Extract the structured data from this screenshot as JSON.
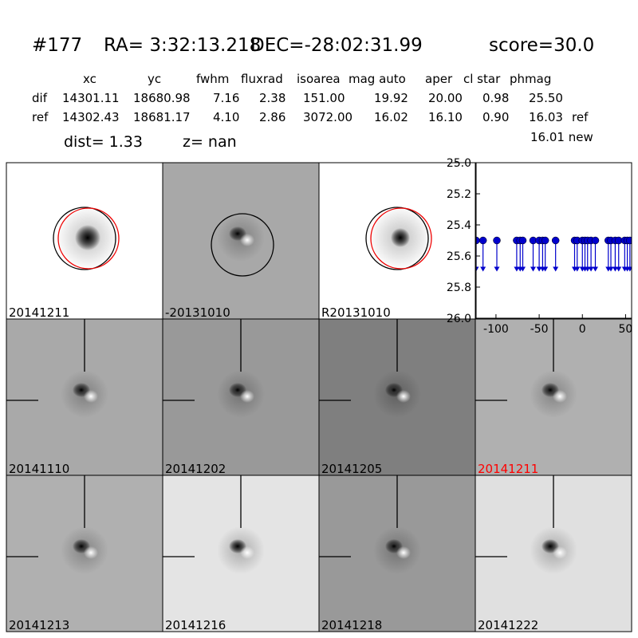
{
  "header": {
    "id": "#177",
    "ra": "RA= 3:32:13.218",
    "dec": "DEC=-28:02:31.99",
    "score": "score=30.0"
  },
  "table": {
    "columns": [
      "xc",
      "yc",
      "fwhm",
      "fluxrad",
      "isoarea",
      "mag auto",
      "aper",
      "cl star",
      "phmag"
    ],
    "rows": [
      {
        "label": "dif",
        "cells": [
          "14301.11",
          "18680.98",
          "7.16",
          "2.38",
          "151.00",
          "19.92",
          "20.00",
          "0.98",
          "25.50"
        ]
      },
      {
        "label": "ref",
        "cells": [
          "14302.43",
          "18681.17",
          "4.10",
          "2.86",
          "3072.00",
          "16.02",
          "16.10",
          "0.90",
          "16.03"
        ],
        "suffix": "ref"
      }
    ],
    "extra": "16.01 new"
  },
  "info": {
    "dist": "dist=  1.33",
    "z": "z=   nan"
  },
  "panels": [
    {
      "label": "20141211",
      "color": "#000000"
    },
    {
      "label": "-20131010",
      "color": "#000000"
    },
    {
      "label": "R20131010",
      "color": "#000000"
    },
    {
      "label": "20141110",
      "color": "#000000"
    },
    {
      "label": "20141202",
      "color": "#000000"
    },
    {
      "label": "20141205",
      "color": "#000000"
    },
    {
      "label": "20141211",
      "color": "#ff0000"
    },
    {
      "label": "20141213",
      "color": "#000000"
    },
    {
      "label": "20141216",
      "color": "#000000"
    },
    {
      "label": "20141218",
      "color": "#000000"
    },
    {
      "label": "20141222",
      "color": "#000000"
    }
  ],
  "chart_data": {
    "type": "scatter",
    "color": "#0000cc",
    "upper_limits": true,
    "y_inverted": true,
    "x": [
      -123,
      -115,
      -99,
      -76,
      -72,
      -69,
      -57,
      -50,
      -46,
      -43,
      -31,
      -9,
      -6,
      0,
      3,
      6,
      10,
      15,
      30,
      33,
      38,
      42,
      49,
      52,
      55
    ],
    "values": [
      25.5,
      25.5,
      25.5,
      25.5,
      25.5,
      25.5,
      25.5,
      25.5,
      25.5,
      25.5,
      25.5,
      25.5,
      25.5,
      25.5,
      25.5,
      25.5,
      25.5,
      25.5,
      25.5,
      25.5,
      25.5,
      25.5,
      25.5,
      25.5,
      25.5
    ],
    "xlim": [
      -123,
      57
    ],
    "xticks": [
      -100,
      -50,
      0,
      50
    ],
    "ylim": [
      25.0,
      26.0
    ],
    "yticks": [
      {
        "value": 25.0,
        "label": "25.0"
      },
      {
        "value": 25.2,
        "label": "25.2"
      },
      {
        "value": 25.4,
        "label": "25.4"
      },
      {
        "value": 25.6,
        "label": "25.6"
      },
      {
        "value": 25.8,
        "label": "25.8"
      },
      {
        "value": 26.0,
        "label": "26.0"
      }
    ]
  }
}
